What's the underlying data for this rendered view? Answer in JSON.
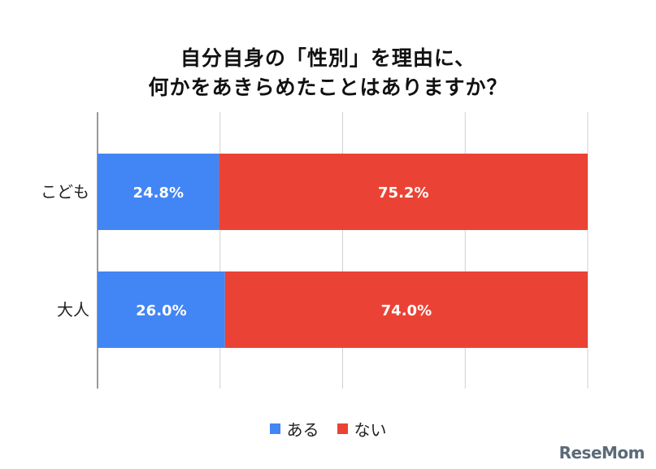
{
  "chart_data": {
    "type": "bar",
    "orientation": "horizontal",
    "stacked": true,
    "title_lines": [
      "自分自身の「性別」を理由に、",
      "何かをあきらめたことはありますか？"
    ],
    "categories": [
      "こども",
      "大人"
    ],
    "series": [
      {
        "name": "ある",
        "values": [
          24.8,
          26.0
        ],
        "labels": [
          "24.8%",
          "26.0%"
        ],
        "color": "#4285f4"
      },
      {
        "name": "ない",
        "values": [
          75.2,
          74.0
        ],
        "labels": [
          "75.2%",
          "74.0%"
        ],
        "color": "#ea4335"
      }
    ],
    "xlim": [
      0,
      100
    ],
    "grid": true,
    "legend_position": "bottom"
  },
  "watermark": "ReseMom"
}
